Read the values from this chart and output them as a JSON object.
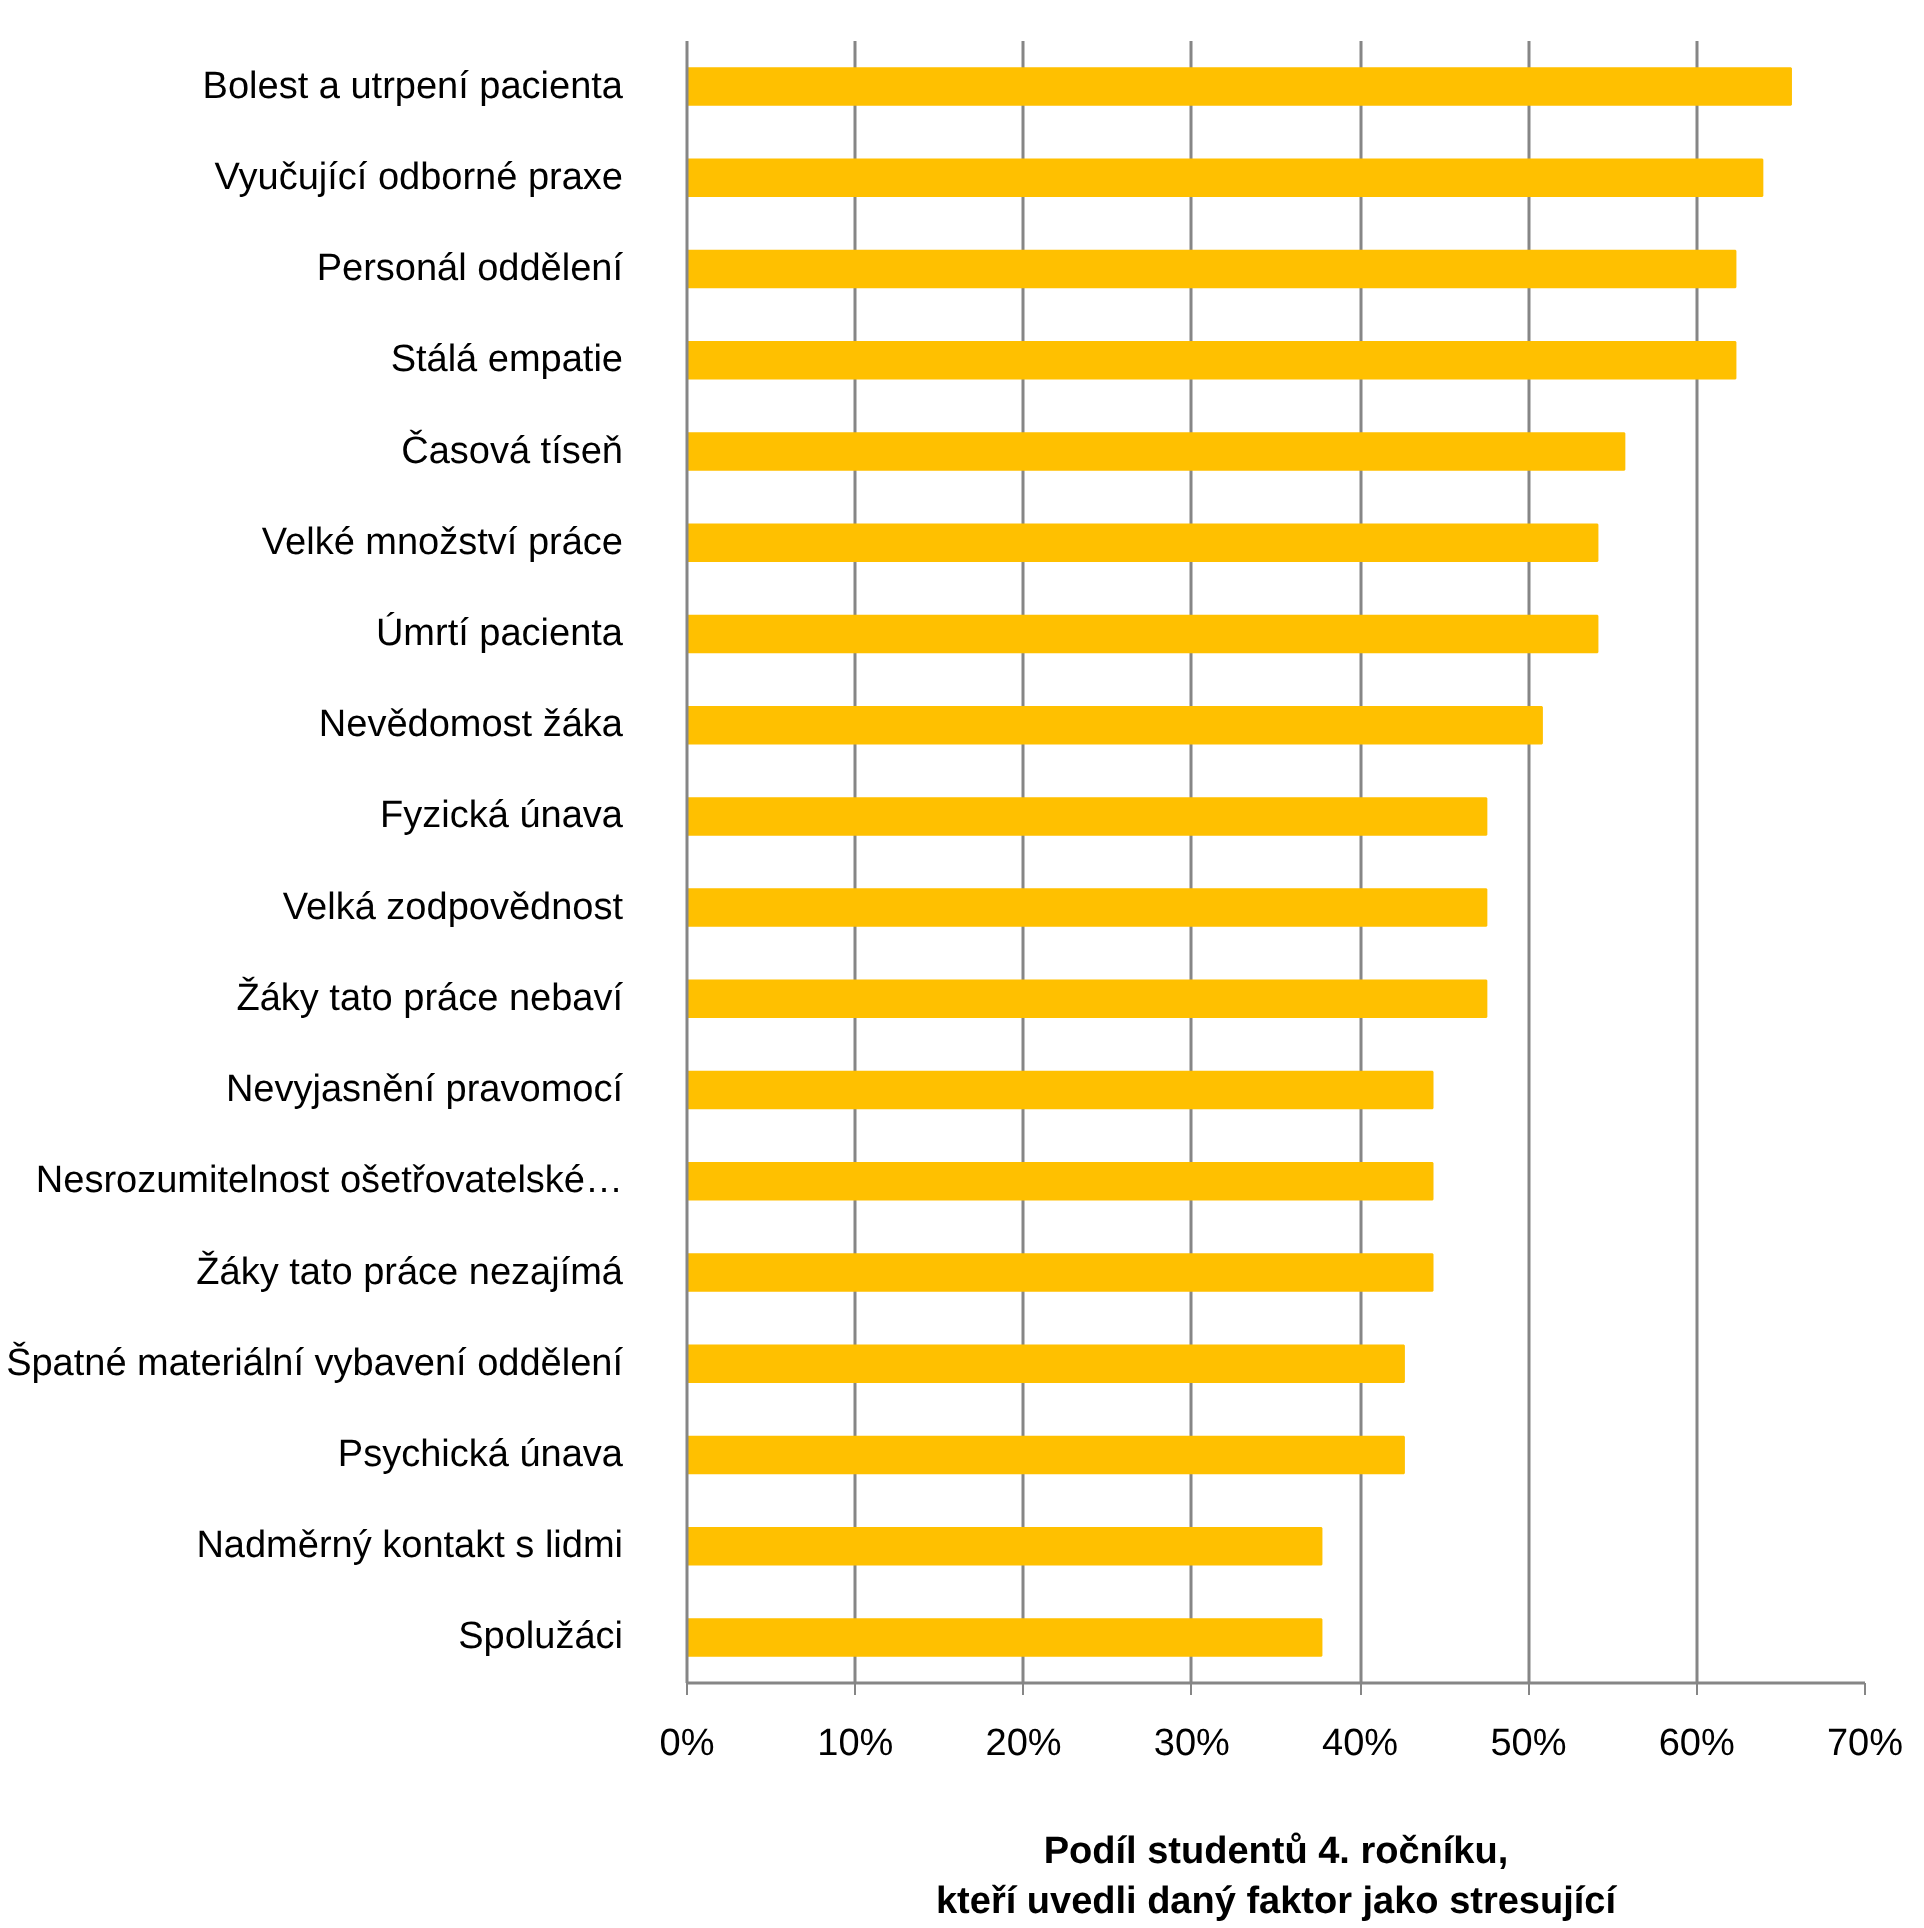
{
  "chart_data": {
    "type": "bar",
    "orientation": "horizontal",
    "xlabel": "Podíl studentů 4. ročníku,\nkteří uvedli daný faktor jako stresující",
    "categories": [
      "Bolest a utrpení pacienta",
      "Vyučující odborné praxe",
      "Personál oddělení",
      "Stálá empatie",
      "Časová tíseň",
      "Velké množství práce",
      "Úmrtí pacienta",
      "Nevědomost žáka",
      "Fyzická únava",
      "Velká zodpovědnost",
      "Žáky tato práce nebaví",
      "Nevyjasnění pravomocí",
      "Nesrozumitelnost ošetřovatelské…",
      "Žáky tato práce nezajímá",
      "Špatné materiální vybavení oddělení",
      "Psychická únava",
      "Nadměrný kontakt s lidmi",
      "Spolužáci"
    ],
    "values": [
      65.6,
      63.9,
      62.3,
      62.3,
      55.7,
      54.1,
      54.1,
      50.8,
      47.5,
      47.5,
      47.5,
      44.3,
      44.3,
      44.3,
      42.6,
      42.6,
      37.7,
      37.7
    ],
    "color": "#ffc000",
    "xlim": [
      0,
      70
    ],
    "xticks": [
      {
        "value": 0,
        "label": "0%"
      },
      {
        "value": 10,
        "label": "10%"
      },
      {
        "value": 20,
        "label": "20%"
      },
      {
        "value": 30,
        "label": "30%"
      },
      {
        "value": 40,
        "label": "40%"
      },
      {
        "value": 50,
        "label": "50%"
      },
      {
        "value": 60,
        "label": "60%"
      },
      {
        "value": 70,
        "label": "70%"
      }
    ],
    "grid": "x"
  }
}
